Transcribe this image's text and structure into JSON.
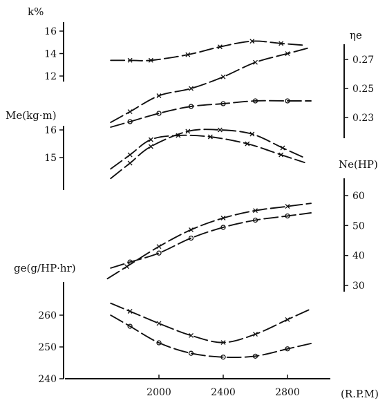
{
  "chart_data": {
    "type": "line",
    "xlabel": "(R.P.M)",
    "x_ticks": [
      2000,
      2400,
      2800
    ],
    "panels": [
      {
        "id": "k",
        "ylabel": "k%",
        "ylabel_side": "left",
        "y_ticks": [
          12,
          14,
          16
        ],
        "series": [
          {
            "marker": "x",
            "points": [
              [
                1820,
                13.4
              ],
              [
                1950,
                13.4
              ],
              [
                2180,
                13.9
              ],
              [
                2380,
                14.6
              ],
              [
                2580,
                15.1
              ],
              [
                2760,
                14.9
              ]
            ]
          }
        ]
      },
      {
        "id": "eta",
        "ylabel": "ηe",
        "ylabel_side": "right",
        "y_ticks": [
          0.23,
          0.25,
          0.27
        ],
        "series": [
          {
            "marker": "x",
            "points": [
              [
                1820,
                0.234
              ],
              [
                2000,
                0.245
              ],
              [
                2200,
                0.25
              ],
              [
                2400,
                0.258
              ],
              [
                2600,
                0.268
              ],
              [
                2800,
                0.274
              ]
            ]
          }
        ]
      },
      {
        "id": "Me",
        "ylabel": "Me(kg·m)",
        "ylabel_side": "left",
        "y_ticks": [
          15,
          16
        ],
        "series": [
          {
            "marker": "o",
            "points": [
              [
                1820,
                16.3
              ],
              [
                2000,
                16.6
              ],
              [
                2200,
                16.85
              ],
              [
                2400,
                16.95
              ],
              [
                2600,
                17.05
              ],
              [
                2800,
                17.05
              ]
            ]
          },
          {
            "marker": "x",
            "points": [
              [
                1820,
                15.1
              ],
              [
                1950,
                15.65
              ],
              [
                2120,
                15.8
              ],
              [
                2320,
                15.75
              ],
              [
                2550,
                15.5
              ],
              [
                2760,
                15.1
              ]
            ]
          },
          {
            "marker": "x",
            "points": [
              [
                1820,
                14.8
              ],
              [
                1950,
                15.4
              ],
              [
                2180,
                15.95
              ],
              [
                2380,
                16.0
              ],
              [
                2580,
                15.85
              ],
              [
                2770,
                15.35
              ]
            ]
          }
        ]
      },
      {
        "id": "Ne",
        "ylabel": "Ne(HP)",
        "ylabel_side": "right",
        "y_ticks": [
          30,
          40,
          50,
          60
        ],
        "series": [
          {
            "marker": "x",
            "points": [
              [
                1800,
                36.3
              ],
              [
                2000,
                43.0
              ],
              [
                2200,
                48.6
              ],
              [
                2400,
                52.5
              ],
              [
                2600,
                55.0
              ],
              [
                2800,
                56.4
              ]
            ]
          },
          {
            "marker": "o",
            "points": [
              [
                1820,
                37.8
              ],
              [
                2000,
                40.8
              ],
              [
                2200,
                45.8
              ],
              [
                2400,
                49.4
              ],
              [
                2600,
                51.8
              ],
              [
                2800,
                53.2
              ]
            ]
          }
        ]
      },
      {
        "id": "ge",
        "ylabel": "ge(g/HP·hr)",
        "ylabel_side": "left",
        "y_ticks": [
          240,
          250,
          260
        ],
        "series": [
          {
            "marker": "x",
            "points": [
              [
                1820,
                261.2
              ],
              [
                2000,
                257.4
              ],
              [
                2200,
                253.6
              ],
              [
                2400,
                251.4
              ],
              [
                2600,
                254.0
              ],
              [
                2800,
                258.6
              ]
            ]
          },
          {
            "marker": "o",
            "points": [
              [
                1820,
                256.5
              ],
              [
                2000,
                251.3
              ],
              [
                2200,
                248.0
              ],
              [
                2400,
                246.8
              ],
              [
                2600,
                247.1
              ],
              [
                2800,
                249.4
              ]
            ]
          }
        ]
      }
    ]
  }
}
